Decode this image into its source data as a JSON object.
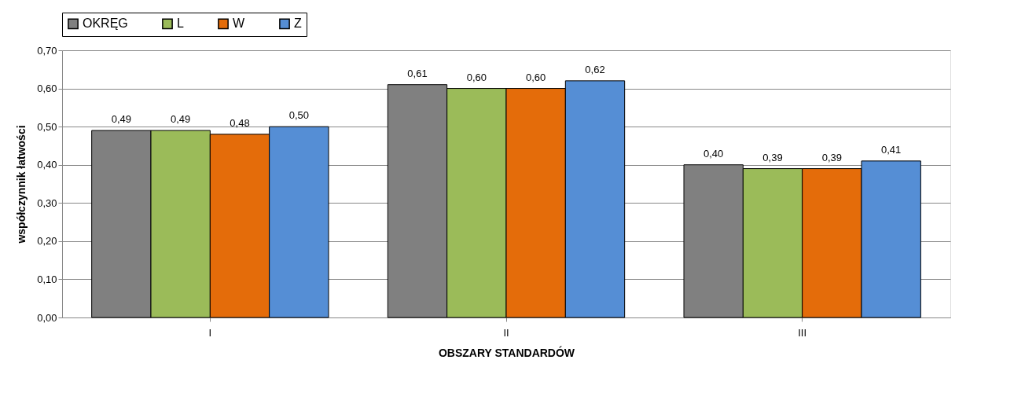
{
  "chart_data": {
    "type": "bar",
    "xlabel": "OBSZARY STANDARDÓW",
    "ylabel": "współczynnik łatwości",
    "categories": [
      "I",
      "II",
      "III"
    ],
    "series": [
      {
        "name": "OKRĘG",
        "color": "#808080",
        "values": [
          0.49,
          0.61,
          0.4
        ],
        "value_labels": [
          "0,49",
          "0,61",
          "0,40"
        ]
      },
      {
        "name": "L",
        "color": "#9bbb59",
        "values": [
          0.49,
          0.6,
          0.39
        ],
        "value_labels": [
          "0,49",
          "0,60",
          "0,39"
        ]
      },
      {
        "name": "W",
        "color": "#e46c0a",
        "values": [
          0.48,
          0.6,
          0.39
        ],
        "value_labels": [
          "0,48",
          "0,60",
          "0,39"
        ]
      },
      {
        "name": "Z",
        "color": "#558ed5",
        "values": [
          0.5,
          0.62,
          0.41
        ],
        "value_labels": [
          "0,50",
          "0,62",
          "0,41"
        ]
      }
    ],
    "ylim": [
      0,
      0.7
    ],
    "yticks": [
      {
        "value": 0,
        "label": "0,00"
      },
      {
        "value": 0.1,
        "label": "0,10"
      },
      {
        "value": 0.2,
        "label": "0,20"
      },
      {
        "value": 0.3,
        "label": "0,30"
      },
      {
        "value": 0.4,
        "label": "0,40"
      },
      {
        "value": 0.5,
        "label": "0,50"
      },
      {
        "value": 0.6,
        "label": "0,60"
      },
      {
        "value": 0.7,
        "label": "0,70"
      }
    ],
    "grid": "y",
    "legend": "top"
  }
}
